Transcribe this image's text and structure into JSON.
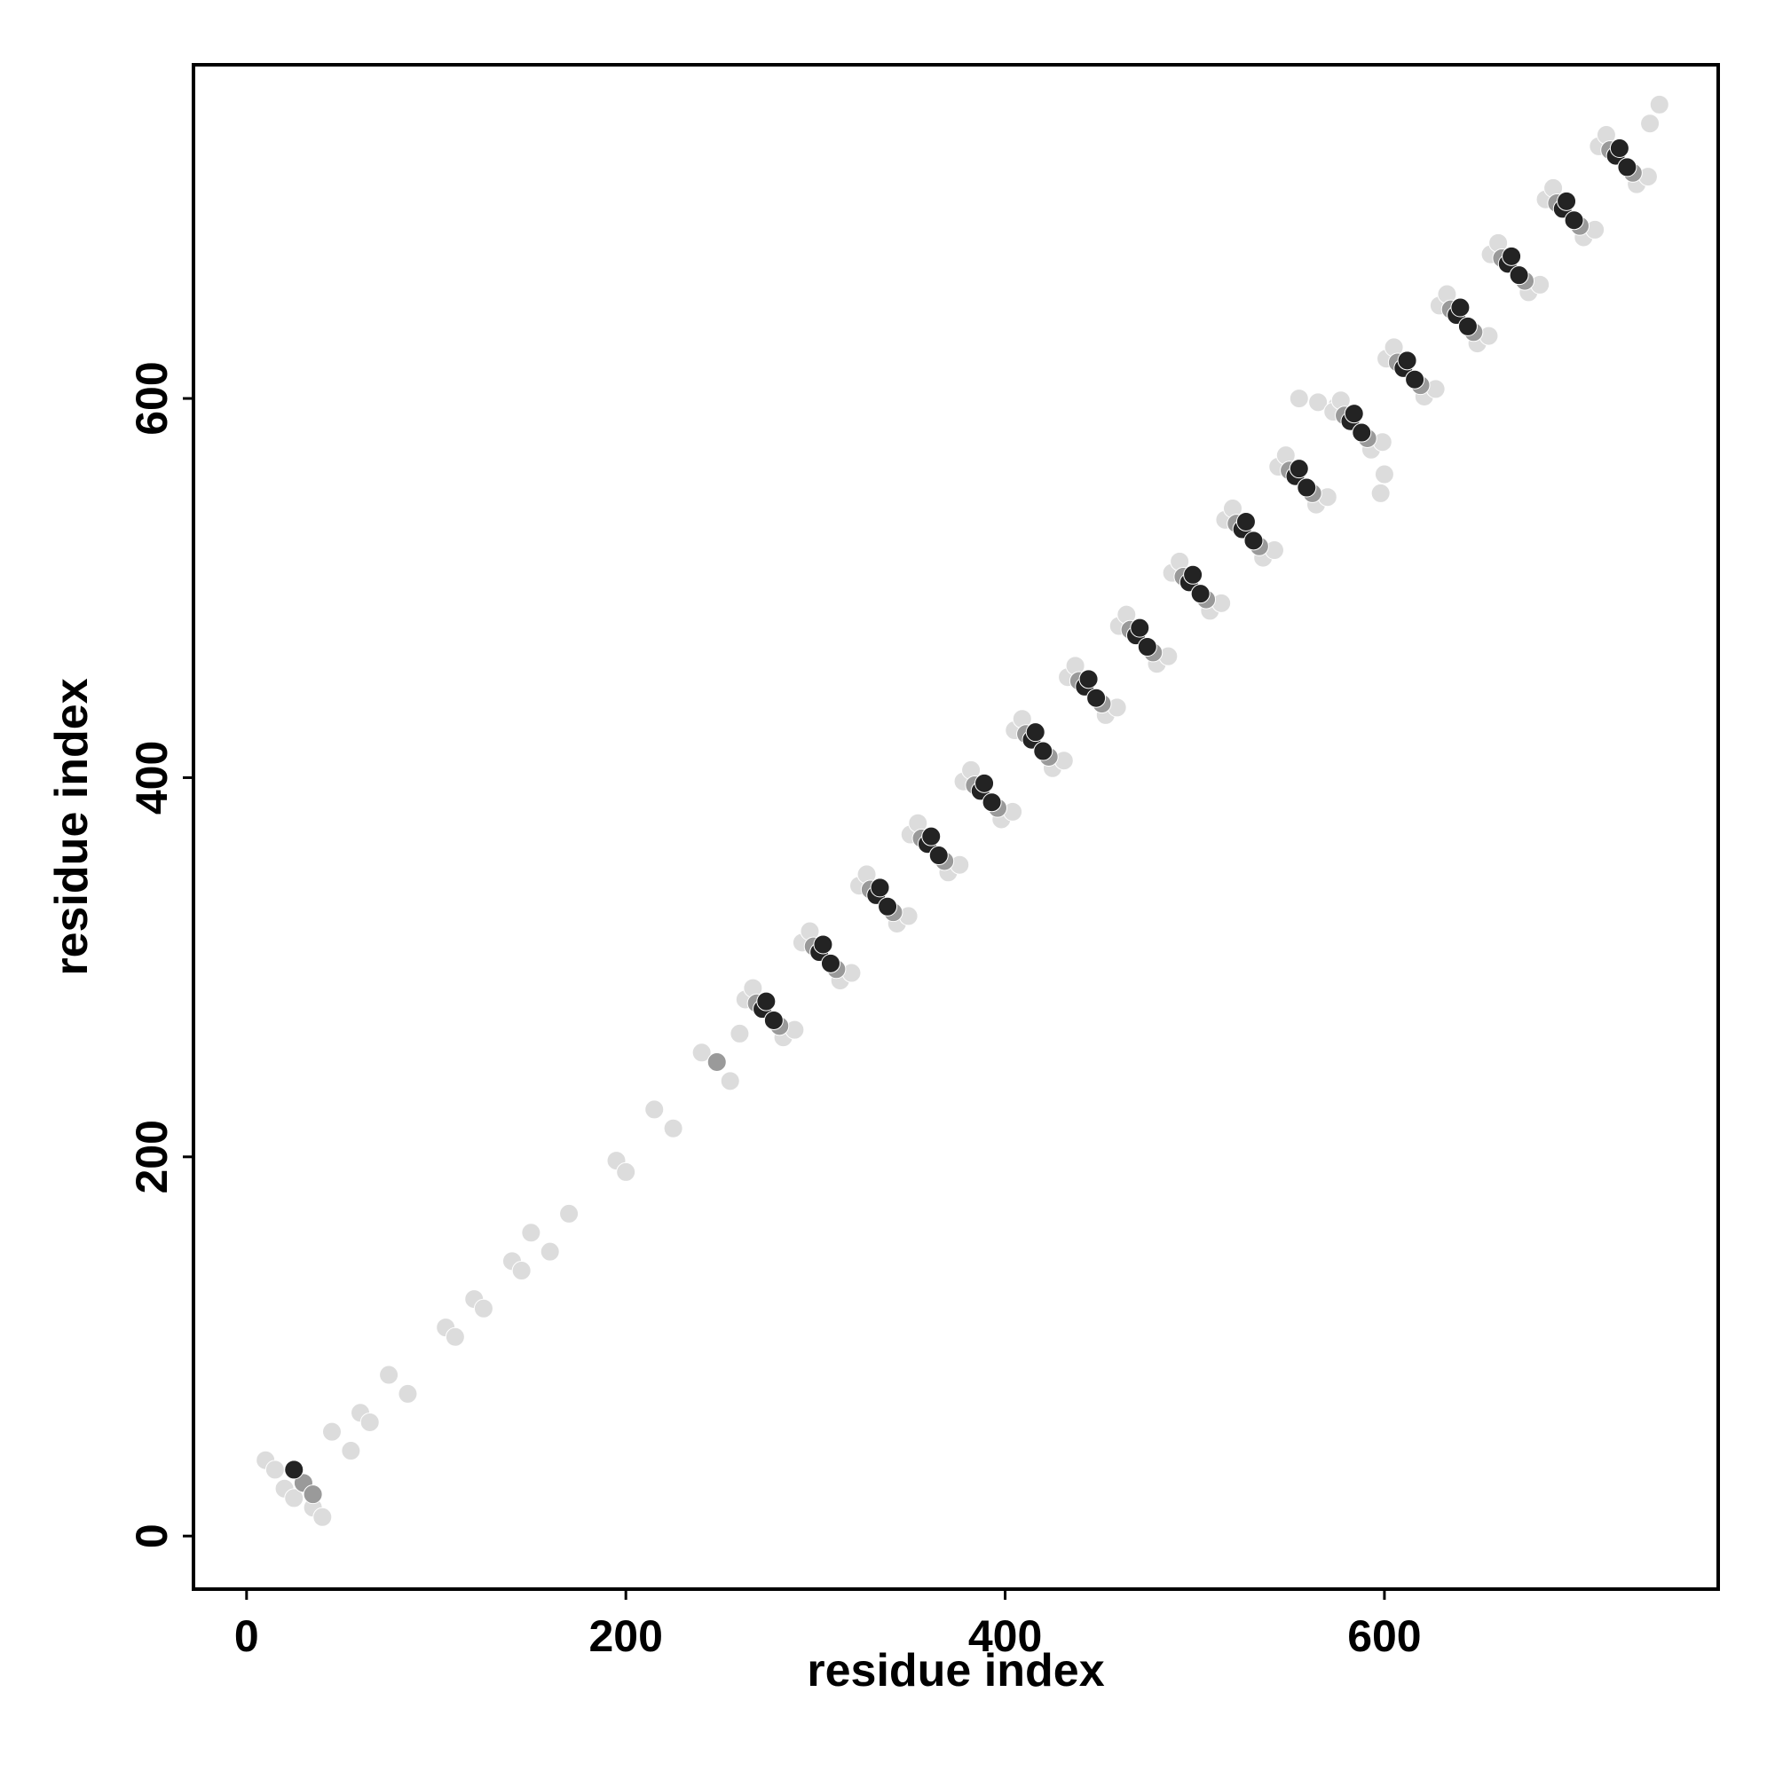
{
  "chart_data": {
    "type": "scatter",
    "xlabel": "residue index",
    "ylabel": "residue index",
    "xlim": [
      -28,
      776
    ],
    "ylim": [
      -28,
      776
    ],
    "xticks": [
      0,
      200,
      400,
      600
    ],
    "yticks": [
      0,
      200,
      400,
      600
    ],
    "series": [
      {
        "color": "#dcdcdc",
        "x": [
          10,
          15,
          20,
          25,
          35,
          40,
          45,
          55,
          60,
          65,
          75,
          85,
          105,
          110,
          120,
          125,
          140,
          145,
          150,
          160,
          170,
          195,
          200,
          215,
          225,
          240,
          255,
          260,
          555,
          565,
          575,
          600,
          598,
          263,
          283,
          267,
          289,
          293,
          313,
          297,
          319,
          323,
          343,
          327,
          349,
          350,
          370,
          354,
          376,
          378,
          398,
          382,
          404,
          405,
          425,
          409,
          431,
          433,
          453,
          437,
          459,
          460,
          480,
          464,
          486,
          488,
          508,
          492,
          514,
          516,
          536,
          520,
          542,
          544,
          564,
          548,
          570,
          573,
          593,
          577,
          599,
          601,
          621,
          605,
          627,
          629,
          649,
          633,
          655,
          656,
          676,
          660,
          682,
          685,
          705,
          689,
          711,
          713,
          733,
          717,
          739,
          745,
          740
        ],
        "y": [
          40,
          35,
          25,
          20,
          15,
          10,
          55,
          45,
          65,
          60,
          85,
          75,
          110,
          105,
          125,
          120,
          145,
          140,
          160,
          150,
          170,
          198,
          192,
          225,
          215,
          255,
          240,
          265,
          600,
          598,
          596,
          560,
          550,
          283,
          263,
          289,
          267,
          313,
          293,
          319,
          297,
          343,
          323,
          349,
          327,
          370,
          350,
          376,
          354,
          398,
          378,
          404,
          382,
          425,
          405,
          431,
          409,
          453,
          433,
          459,
          437,
          480,
          460,
          486,
          464,
          508,
          488,
          514,
          492,
          536,
          516,
          542,
          520,
          564,
          544,
          570,
          548,
          593,
          573,
          599,
          577,
          621,
          601,
          627,
          605,
          649,
          629,
          655,
          633,
          676,
          656,
          682,
          660,
          705,
          685,
          711,
          689,
          733,
          713,
          739,
          717,
          755,
          745
        ]
      },
      {
        "color": "#9a9a9a",
        "x": [
          30,
          35,
          248,
          269,
          281,
          299,
          311,
          329,
          341,
          356,
          368,
          384,
          396,
          411,
          423,
          439,
          451,
          466,
          478,
          494,
          506,
          522,
          534,
          550,
          562,
          579,
          591,
          607,
          619,
          635,
          647,
          662,
          674,
          691,
          703,
          719,
          731
        ],
        "y": [
          28,
          22,
          250,
          281,
          269,
          311,
          299,
          341,
          329,
          368,
          356,
          396,
          384,
          423,
          411,
          451,
          439,
          478,
          466,
          506,
          494,
          534,
          522,
          562,
          550,
          591,
          579,
          619,
          607,
          647,
          635,
          674,
          662,
          703,
          691,
          731,
          719
        ]
      },
      {
        "color": "#232323",
        "x": [
          25,
          272,
          278,
          274,
          302,
          308,
          304,
          332,
          338,
          334,
          359,
          365,
          361,
          387,
          393,
          389,
          414,
          420,
          416,
          442,
          448,
          444,
          469,
          475,
          471,
          497,
          503,
          499,
          525,
          531,
          527,
          553,
          559,
          555,
          582,
          588,
          584,
          610,
          616,
          612,
          638,
          644,
          640,
          665,
          671,
          667,
          694,
          700,
          696,
          722,
          728,
          724
        ],
        "y": [
          35,
          278,
          272,
          282,
          308,
          302,
          312,
          338,
          332,
          342,
          365,
          359,
          369,
          393,
          387,
          397,
          420,
          414,
          424,
          448,
          442,
          452,
          475,
          469,
          479,
          503,
          497,
          507,
          531,
          525,
          535,
          559,
          553,
          563,
          588,
          582,
          592,
          616,
          610,
          620,
          644,
          638,
          648,
          671,
          665,
          675,
          700,
          694,
          704,
          728,
          722,
          732
        ]
      }
    ]
  }
}
